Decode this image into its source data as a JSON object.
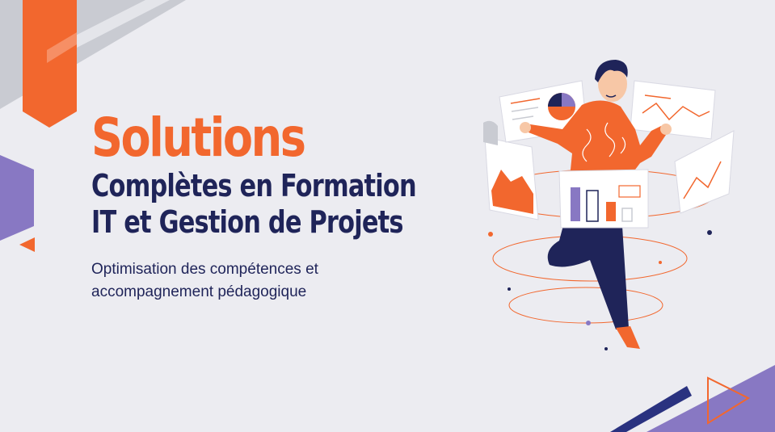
{
  "hero": {
    "headline": "Solutions",
    "subheadline_line1": "Complètes en Formation",
    "subheadline_line2": "IT et Gestion de Projets",
    "tagline_line1": "Optimisation des compétences et",
    "tagline_line2": "accompagnement pédagogique"
  },
  "colors": {
    "background": "#ececf1",
    "accent_orange": "#f2672e",
    "navy": "#1f2459",
    "purple": "#8878c3",
    "gray_stripe": "#c9cbd2"
  },
  "illustration": {
    "subject": "man-with-floating-dashboards-icon"
  }
}
